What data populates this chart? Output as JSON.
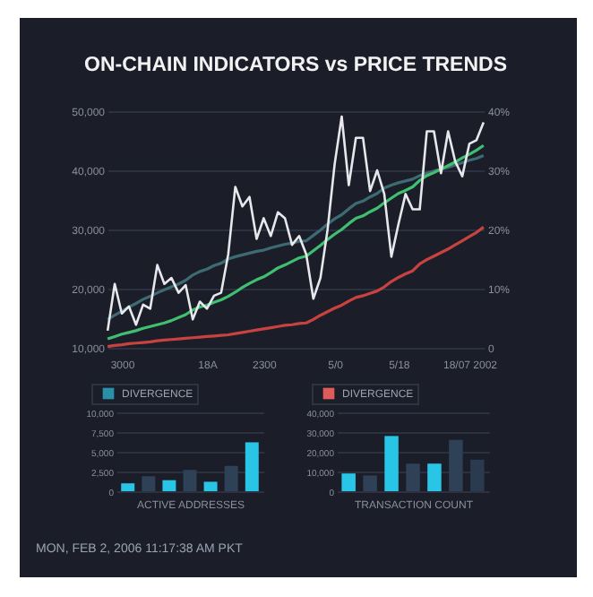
{
  "chart_data": [
    {
      "type": "line",
      "title": "ON-CHAIN INDICATORS vs PRICE TRENDS",
      "grid": "y",
      "categories": [
        null,
        null,
        "3000",
        null,
        null,
        null,
        null,
        null,
        null,
        null,
        null,
        null,
        null,
        null,
        "18A",
        null,
        null,
        null,
        null,
        null,
        null,
        null,
        "2300",
        null,
        null,
        null,
        null,
        null,
        null,
        null,
        null,
        null,
        "5/0",
        null,
        null,
        null,
        null,
        null,
        null,
        null,
        null,
        "5/18",
        null,
        null,
        null,
        null,
        null,
        null,
        null,
        null,
        null,
        "18/07 2002",
        null,
        null
      ],
      "ylim": [
        10000,
        50000
      ],
      "yticks": [
        {
          "value": 10000,
          "label": "10,000"
        },
        {
          "value": 20000,
          "label": "20,000"
        },
        {
          "value": 30000,
          "label": "30,000"
        },
        {
          "value": 40000,
          "label": "40,000"
        },
        {
          "value": 50000,
          "label": "50,000"
        }
      ],
      "y2lim": [
        0,
        40
      ],
      "y2ticks": [
        {
          "value": 0,
          "label": "0"
        },
        {
          "value": 10,
          "label": "10%"
        },
        {
          "value": 20,
          "label": "20%"
        },
        {
          "value": 30,
          "label": "30%"
        },
        {
          "value": 40,
          "label": "40%"
        }
      ],
      "series": [
        {
          "color": "#3e6a74",
          "values": [
            14800,
            15500,
            16200,
            16900,
            17500,
            18200,
            18700,
            19300,
            19800,
            20300,
            20800,
            21400,
            22300,
            22900,
            23300,
            23900,
            24300,
            25000,
            25400,
            25700,
            26000,
            26300,
            26500,
            26900,
            27200,
            27500,
            27700,
            28000,
            28100,
            29000,
            29900,
            30900,
            31800,
            32500,
            33500,
            34400,
            34800,
            35500,
            36100,
            37000,
            37500,
            37900,
            38200,
            38500,
            39100,
            39500,
            39900,
            40200,
            40500,
            40900,
            41300,
            41700,
            42000,
            42500
          ]
        },
        {
          "color": "#3fbf6f",
          "axis": "y2",
          "values": [
            1.5,
            1.9,
            2.3,
            2.6,
            2.9,
            3.3,
            3.6,
            3.9,
            4.2,
            4.6,
            5.1,
            5.6,
            6.4,
            6.9,
            7.2,
            7.7,
            8.1,
            8.7,
            9.4,
            10.2,
            10.9,
            11.5,
            12,
            12.7,
            13.5,
            14,
            14.6,
            15.2,
            15.5,
            16.4,
            17.3,
            18.3,
            19.2,
            20,
            21,
            21.9,
            22.3,
            23,
            23.6,
            24.5,
            25.3,
            26.1,
            26.6,
            27.2,
            28.3,
            29.1,
            29.6,
            30.2,
            30.8,
            31.4,
            32.1,
            32.7,
            33.4,
            34.2
          ]
        },
        {
          "color": "#c8433f",
          "axis": "y2",
          "values": [
            0.2,
            0.4,
            0.5,
            0.7,
            0.8,
            0.9,
            1,
            1.2,
            1.3,
            1.4,
            1.5,
            1.6,
            1.7,
            1.8,
            1.9,
            2,
            2.1,
            2.2,
            2.4,
            2.6,
            2.8,
            3,
            3.2,
            3.4,
            3.6,
            3.8,
            3.9,
            4.1,
            4.2,
            4.8,
            5.5,
            6.1,
            6.7,
            7.2,
            7.9,
            8.5,
            8.8,
            9.2,
            9.6,
            10.3,
            11.2,
            11.9,
            12.5,
            13,
            14.2,
            14.9,
            15.5,
            16.1,
            16.7,
            17.4,
            18.1,
            18.8,
            19.5,
            20.4
          ]
        },
        {
          "color": "#e8e8ec",
          "values": [
            12900,
            20800,
            15800,
            17000,
            13900,
            17300,
            16600,
            24000,
            20800,
            21800,
            19300,
            20600,
            14800,
            17800,
            16600,
            18800,
            19300,
            25800,
            37200,
            33900,
            35500,
            28400,
            31900,
            28900,
            32900,
            31900,
            27400,
            28900,
            25800,
            18300,
            21800,
            29900,
            41000,
            49100,
            37500,
            45500,
            45500,
            36500,
            40000,
            36000,
            25400,
            30900,
            36000,
            33400,
            33400,
            46600,
            46600,
            39500,
            46600,
            41500,
            39000,
            44500,
            45100,
            48100
          ]
        }
      ]
    },
    {
      "type": "bar",
      "xlabel": "ACTIVE ADDRESSES",
      "grid": "y",
      "legend": "top left",
      "categories": [
        null,
        null,
        null,
        null,
        null,
        null,
        null
      ],
      "ylim": [
        0,
        10000
      ],
      "yticks": [
        0,
        {
          "value": 2500,
          "label": "2,500"
        },
        {
          "value": 5000,
          "label": "5,000"
        },
        {
          "value": 7500,
          "label": "7,500"
        },
        {
          "value": 10000,
          "label": "10,000"
        }
      ],
      "series": [
        {
          "name": "DIVERGENCE",
          "color": "#2a8fa8",
          "colors": [
            "#29c5e6",
            "#2e4157",
            "#29c5e6",
            "#2e4157",
            "#29c5e6",
            "#2e4157",
            "#29c5e6"
          ],
          "values": [
            1000,
            1900,
            1400,
            2700,
            1200,
            3200,
            6200
          ]
        }
      ],
      "annotations": [
        "MON, FEB 2, 2006 11:17:38 AM PKT"
      ]
    },
    {
      "type": "bar",
      "xlabel": "TRANSACTION COUNT",
      "grid": "y",
      "legend": "top left",
      "categories": [
        null,
        null,
        null,
        null,
        null,
        null,
        null
      ],
      "ylim": [
        0,
        40000
      ],
      "yticks": [
        0,
        {
          "value": 10000,
          "label": "10,000"
        },
        {
          "value": 20000,
          "label": "20,000"
        },
        {
          "value": 30000,
          "label": "30,000"
        },
        {
          "value": 40000,
          "label": "40,000"
        }
      ],
      "series": [
        {
          "name": "DIVERGENCE",
          "color": "#e05a5a",
          "colors": [
            "#29c5e6",
            "#2e4157",
            "#29c5e6",
            "#2e4157",
            "#29c5e6",
            "#2e4157",
            "#2a3b4f"
          ],
          "values": [
            9000,
            8000,
            28000,
            14000,
            14000,
            26000,
            16000
          ]
        }
      ]
    }
  ]
}
